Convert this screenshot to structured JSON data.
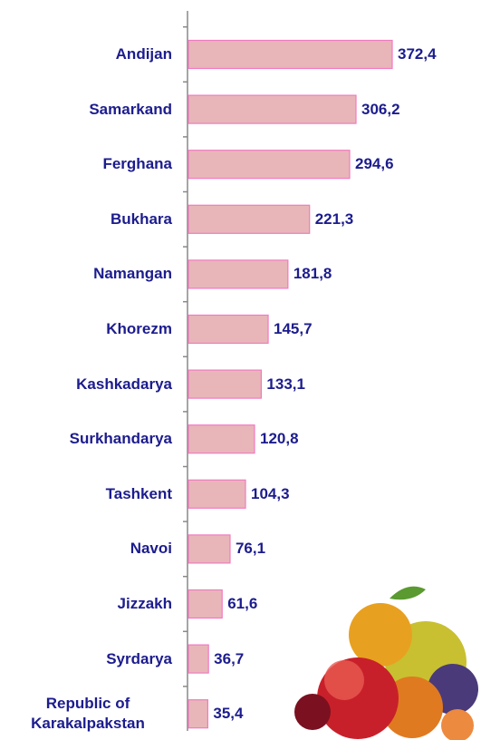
{
  "chart_data": {
    "type": "bar",
    "orientation": "horizontal",
    "categories": [
      "Andijan",
      "Samarkand",
      "Ferghana",
      "Bukhara",
      "Namangan",
      "Khorezm",
      "Kashkadarya",
      "Surkhandarya",
      "Tashkent",
      "Navoi",
      "Jizzakh",
      "Syrdarya",
      "Republic of Karakalpakstan"
    ],
    "values": [
      372.4,
      306.2,
      294.6,
      221.3,
      181.8,
      145.7,
      133.1,
      120.8,
      104.3,
      76.1,
      61.6,
      36.7,
      35.4
    ],
    "value_labels": [
      "372,4",
      "306,2",
      "294,6",
      "221,3",
      "181,8",
      "145,7",
      "133,1",
      "120,8",
      "104,3",
      "76,1",
      "61,6",
      "36,7",
      "35,4"
    ],
    "color": "#e8b6b9"
  }
}
